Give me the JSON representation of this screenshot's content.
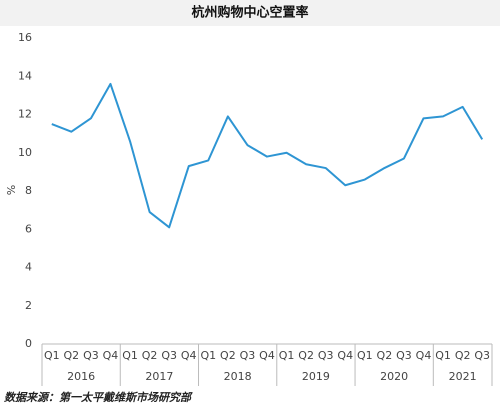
{
  "chart_data": {
    "type": "line",
    "title": "杭州购物中心空置率",
    "y_label": "%",
    "year_groups": [
      {
        "label": "2016",
        "quarters": [
          "Q1",
          "Q2",
          "Q3",
          "Q4"
        ]
      },
      {
        "label": "2017",
        "quarters": [
          "Q1",
          "Q2",
          "Q3",
          "Q4"
        ]
      },
      {
        "label": "2018",
        "quarters": [
          "Q1",
          "Q2",
          "Q3",
          "Q4"
        ]
      },
      {
        "label": "2019",
        "quarters": [
          "Q1",
          "Q2",
          "Q3",
          "Q4"
        ]
      },
      {
        "label": "2020",
        "quarters": [
          "Q1",
          "Q2",
          "Q3",
          "Q4"
        ]
      },
      {
        "label": "2021",
        "quarters": [
          "Q1",
          "Q2",
          "Q3"
        ]
      }
    ],
    "series": [
      {
        "color": "#2e95d3",
        "values": [
          11.5,
          11.1,
          11.8,
          13.6,
          10.6,
          6.9,
          6.1,
          9.3,
          9.6,
          11.9,
          10.4,
          9.8,
          10.0,
          9.4,
          9.2,
          8.3,
          8.6,
          9.2,
          9.7,
          11.8,
          11.9,
          12.4,
          10.7
        ]
      }
    ],
    "ylim": [
      0,
      16
    ],
    "yticks": [
      0,
      2,
      4,
      6,
      8,
      10,
      12,
      14,
      16
    ],
    "grid": false,
    "source": "数据来源：第一太平戴维斯市场研究部"
  }
}
